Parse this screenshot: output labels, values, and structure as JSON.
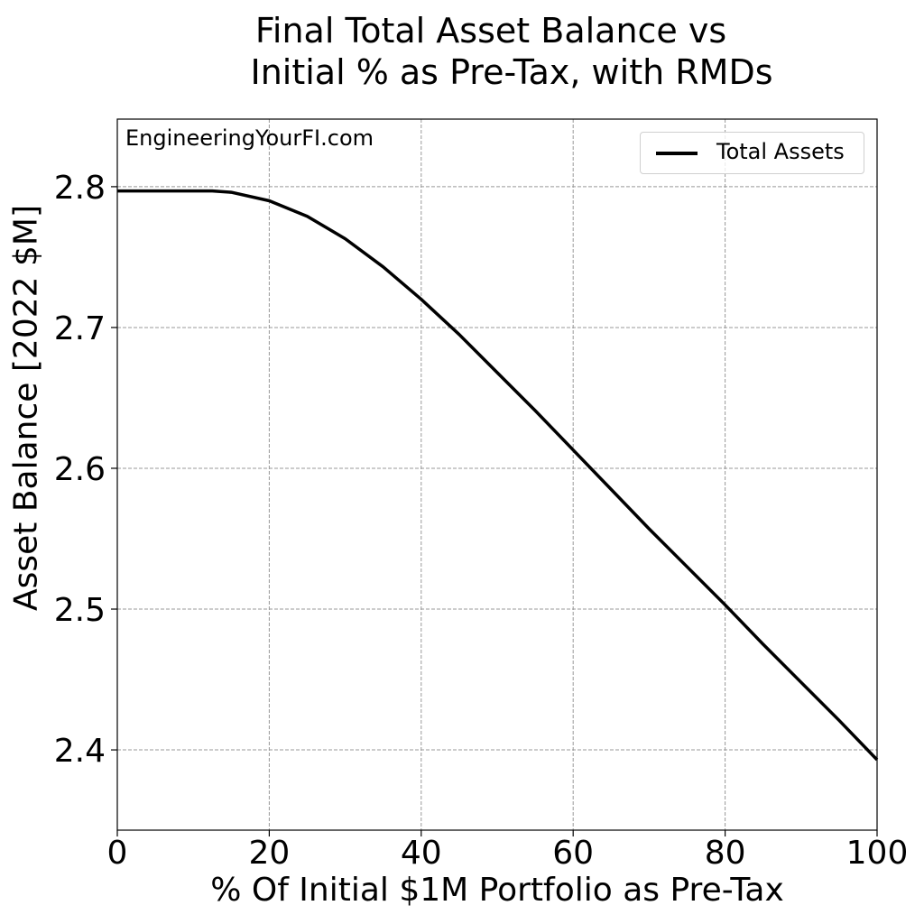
{
  "chart_data": {
    "type": "line",
    "title": [
      "Final Total Asset Balance vs",
      "Initial % as Pre-Tax, with RMDs"
    ],
    "xlabel": "% Of Initial $1M Portfolio as Pre-Tax",
    "ylabel": "Asset Balance [2022 $M]",
    "annotation": "EngineeringYourFI.com",
    "xlim": [
      0,
      100
    ],
    "ylim": [
      2.343,
      2.848
    ],
    "xticks": [
      "0",
      "20",
      "40",
      "60",
      "80",
      "100"
    ],
    "yticks": [
      "2.4",
      "2.5",
      "2.6",
      "2.7",
      "2.8"
    ],
    "grid": true,
    "legend_position": "top-right",
    "series": [
      {
        "name": "Total Assets",
        "color": "#000000",
        "x": [
          0,
          5,
          10,
          12.5,
          15,
          20,
          25,
          30,
          35,
          40,
          45,
          50,
          55,
          60,
          65,
          70,
          75,
          80,
          85,
          90,
          95,
          100
        ],
        "y": [
          2.797,
          2.797,
          2.797,
          2.797,
          2.796,
          2.79,
          2.779,
          2.763,
          2.743,
          2.72,
          2.695,
          2.668,
          2.641,
          2.613,
          2.585,
          2.557,
          2.53,
          2.503,
          2.475,
          2.448,
          2.421,
          2.393
        ]
      }
    ]
  }
}
